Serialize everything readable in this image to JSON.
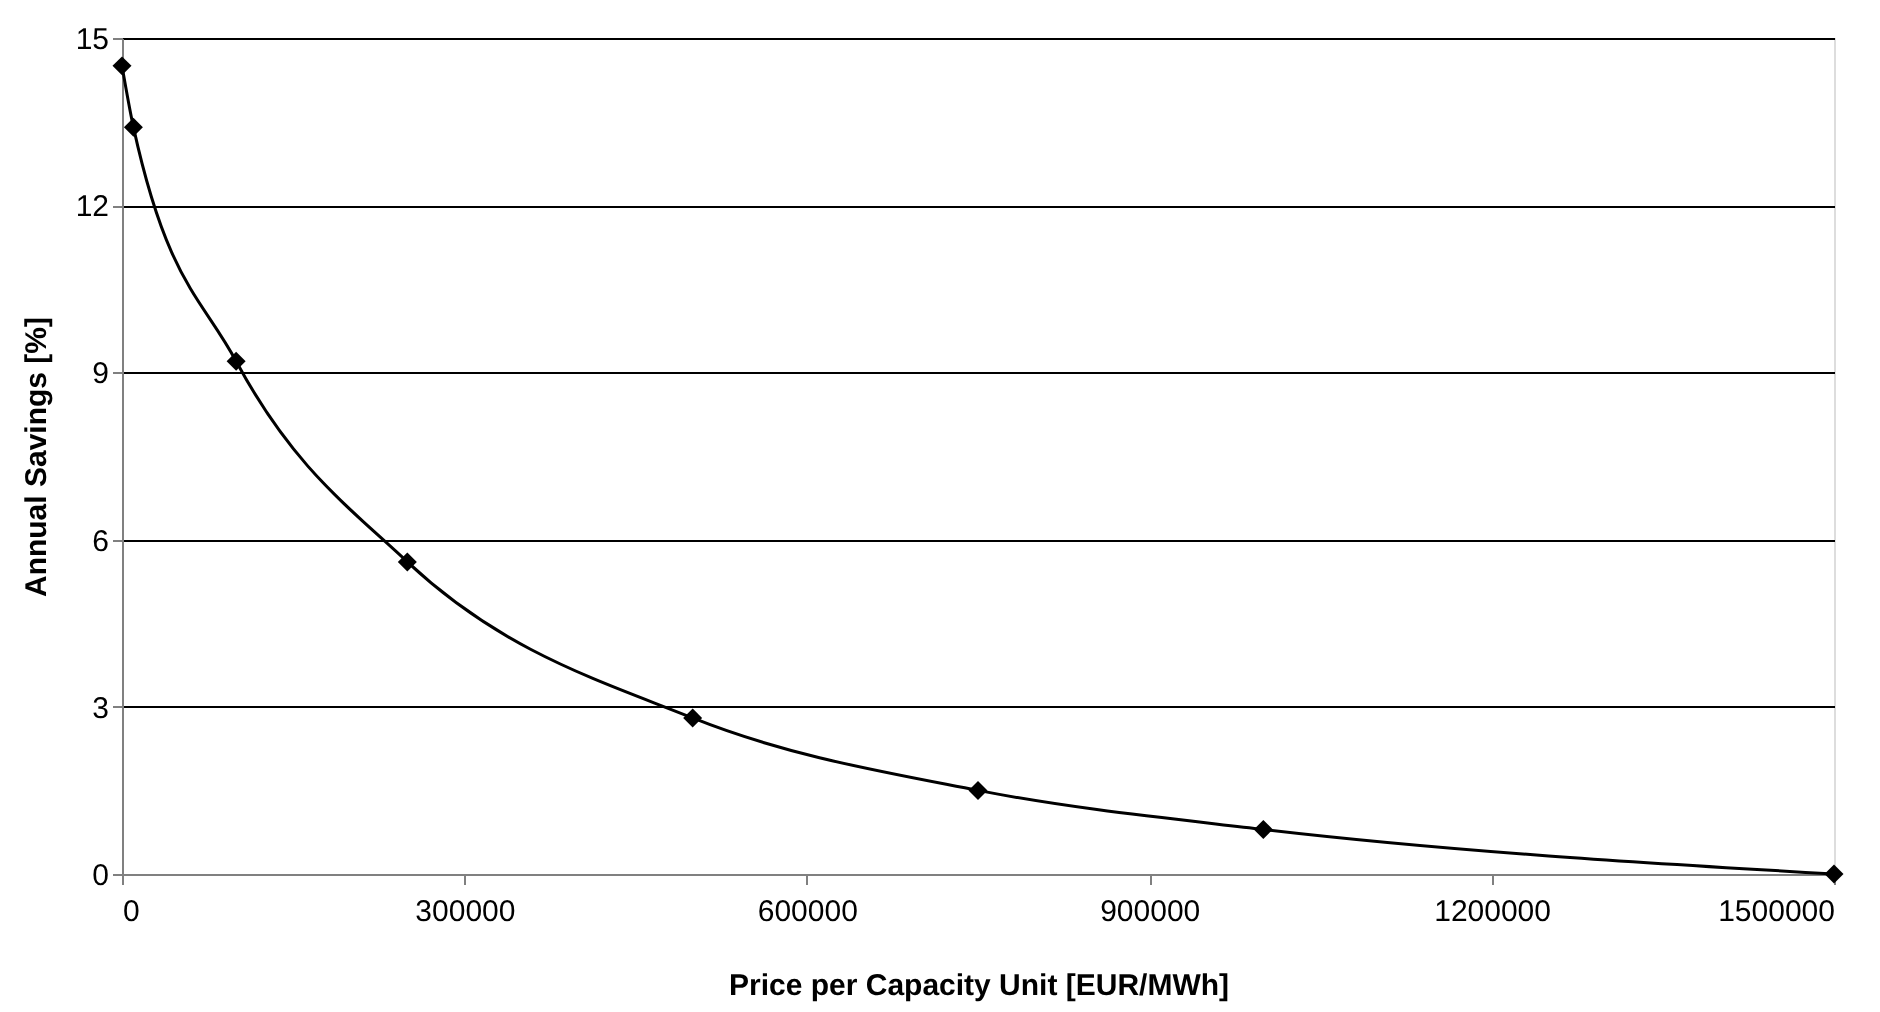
{
  "chart_data": {
    "type": "line",
    "xlabel": "Price per Capacity Unit [EUR/MWh]",
    "ylabel": "Annual Savings [%]",
    "x": [
      0,
      10000,
      100000,
      250000,
      500000,
      750000,
      1000000,
      1500000
    ],
    "series": [
      {
        "color": "#000000",
        "values": [
          14.5,
          13.4,
          9.2,
          5.6,
          2.8,
          1.5,
          0.8,
          0
        ]
      }
    ],
    "xlim": [
      0,
      1500000
    ],
    "xticks": [
      0,
      300000,
      600000,
      900000,
      1200000,
      1500000
    ],
    "ylim": [
      0,
      15
    ],
    "yticks": [
      0,
      3,
      6,
      9,
      12,
      15
    ],
    "grid": "y",
    "marker": "diamond",
    "line_style": "solid"
  }
}
